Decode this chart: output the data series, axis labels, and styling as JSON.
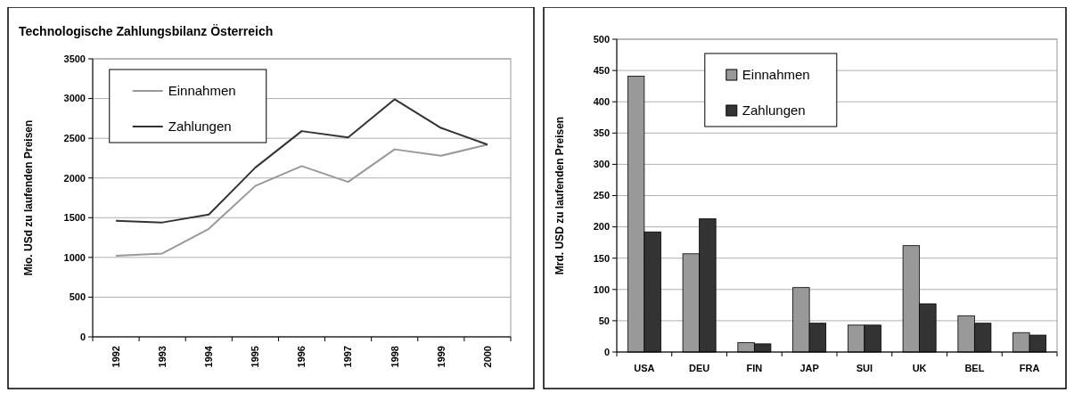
{
  "chart_data": [
    {
      "type": "line",
      "title": "Technologische Zahlungsbilanz Österreich",
      "ylabel": "Mio. USd zu laufenden Preisen",
      "categories": [
        "1992",
        "1993",
        "1994",
        "1995",
        "1996",
        "1997",
        "1998",
        "1999",
        "2000"
      ],
      "series": [
        {
          "name": "Einnahmen",
          "color": "#999999",
          "values": [
            1020,
            1050,
            1360,
            1900,
            2150,
            1950,
            2360,
            2280,
            2420
          ]
        },
        {
          "name": "Zahlungen",
          "color": "#333333",
          "values": [
            1460,
            1440,
            1540,
            2130,
            2590,
            2510,
            2990,
            2630,
            2420
          ]
        }
      ],
      "ylim": [
        0,
        3500
      ],
      "yticks": [
        0,
        500,
        1000,
        1500,
        2000,
        2500,
        3000,
        3500
      ],
      "grid": "y",
      "legend": "top left",
      "marker": "none",
      "line_style": "solid"
    },
    {
      "type": "bar",
      "ylabel": "Mrd. USD zu laufenden Preisen",
      "categories": [
        "USA",
        "DEU",
        "FIN",
        "JAP",
        "SUI",
        "UK",
        "BEL",
        "FRA"
      ],
      "series": [
        {
          "name": "Einnahmen",
          "color": "#999999",
          "values": [
            441,
            157,
            15,
            103,
            43,
            170,
            58,
            31
          ]
        },
        {
          "name": "Zahlungen",
          "color": "#333333",
          "values": [
            192,
            213,
            13,
            46,
            43,
            77,
            46,
            27
          ]
        }
      ],
      "ylim": [
        0,
        500
      ],
      "yticks": [
        0,
        50,
        100,
        150,
        200,
        250,
        300,
        350,
        400,
        450,
        500
      ],
      "grid": "y",
      "legend": "top left"
    }
  ]
}
